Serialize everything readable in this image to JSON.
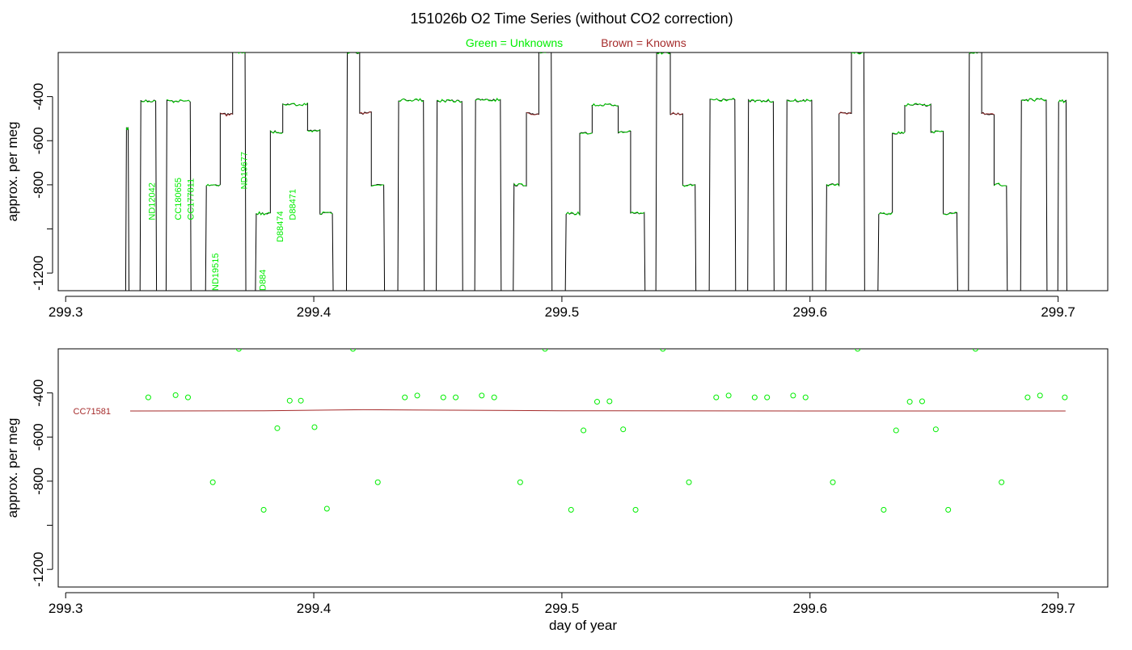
{
  "title": "151026b   O2 Time Series (without CO2 correction)",
  "legend": {
    "unknowns": "Green = Unknowns",
    "knowns": "Brown = Knowns"
  },
  "colors": {
    "unknown": "#00ee00",
    "known": "#a52a2a",
    "trace": "#000000"
  },
  "chart_data": [
    {
      "type": "line",
      "panel": "top",
      "ylabel": "approx. per meg",
      "xlabel": "",
      "xlim": [
        299.297,
        299.72
      ],
      "ylim": [
        -1280,
        -200
      ],
      "x_ticks": [
        299.3,
        299.4,
        299.5,
        299.6,
        299.7
      ],
      "y_ticks": [
        -400,
        -600,
        -800,
        -1200
      ],
      "segments": [
        {
          "x0": 299.3245,
          "x1": 299.3252,
          "y": -545,
          "kind": "unknown"
        },
        {
          "x0": 299.3303,
          "x1": 299.3363,
          "y": -420,
          "kind": "unknown"
        },
        {
          "x0": 299.3408,
          "x1": 299.3502,
          "y": -420,
          "kind": "unknown"
        },
        {
          "x0": 299.3567,
          "x1": 299.3623,
          "y": -800,
          "kind": "unknown"
        },
        {
          "x0": 299.3623,
          "x1": 299.3673,
          "y": -480,
          "kind": "known"
        },
        {
          "x0": 299.3673,
          "x1": 299.3723,
          "y": -200,
          "kind": "unknown"
        },
        {
          "x0": 299.3768,
          "x1": 299.3825,
          "y": -930,
          "kind": "unknown"
        },
        {
          "x0": 299.3825,
          "x1": 299.3875,
          "y": -560,
          "kind": "unknown"
        },
        {
          "x0": 299.3875,
          "x1": 299.3975,
          "y": -435,
          "kind": "unknown"
        },
        {
          "x0": 299.3975,
          "x1": 299.4025,
          "y": -555,
          "kind": "unknown"
        },
        {
          "x0": 299.4025,
          "x1": 299.4075,
          "y": -930,
          "kind": "unknown"
        },
        {
          "x0": 299.4135,
          "x1": 299.4185,
          "y": -200,
          "kind": "unknown"
        },
        {
          "x0": 299.4185,
          "x1": 299.4232,
          "y": -475,
          "kind": "known"
        },
        {
          "x0": 299.4232,
          "x1": 299.4282,
          "y": -800,
          "kind": "unknown"
        },
        {
          "x0": 299.4342,
          "x1": 299.4442,
          "y": -415,
          "kind": "unknown"
        },
        {
          "x0": 299.4497,
          "x1": 299.4597,
          "y": -420,
          "kind": "unknown"
        },
        {
          "x0": 299.4652,
          "x1": 299.4752,
          "y": -415,
          "kind": "unknown"
        },
        {
          "x0": 299.4807,
          "x1": 299.4857,
          "y": -800,
          "kind": "unknown"
        },
        {
          "x0": 299.4857,
          "x1": 299.4907,
          "y": -478,
          "kind": "known"
        },
        {
          "x0": 299.4907,
          "x1": 299.4957,
          "y": -200,
          "kind": "unknown"
        },
        {
          "x0": 299.5017,
          "x1": 299.5072,
          "y": -930,
          "kind": "unknown"
        },
        {
          "x0": 299.5072,
          "x1": 299.5122,
          "y": -565,
          "kind": "unknown"
        },
        {
          "x0": 299.5122,
          "x1": 299.5227,
          "y": -438,
          "kind": "unknown"
        },
        {
          "x0": 299.5227,
          "x1": 299.5277,
          "y": -560,
          "kind": "unknown"
        },
        {
          "x0": 299.5277,
          "x1": 299.5332,
          "y": -930,
          "kind": "unknown"
        },
        {
          "x0": 299.5382,
          "x1": 299.5437,
          "y": -200,
          "kind": "unknown"
        },
        {
          "x0": 299.5437,
          "x1": 299.5487,
          "y": -478,
          "kind": "known"
        },
        {
          "x0": 299.5487,
          "x1": 299.5537,
          "y": -800,
          "kind": "unknown"
        },
        {
          "x0": 299.5597,
          "x1": 299.5697,
          "y": -415,
          "kind": "unknown"
        },
        {
          "x0": 299.5752,
          "x1": 299.5852,
          "y": -420,
          "kind": "unknown"
        },
        {
          "x0": 299.5907,
          "x1": 299.6007,
          "y": -418,
          "kind": "unknown"
        },
        {
          "x0": 299.6067,
          "x1": 299.6117,
          "y": -800,
          "kind": "unknown"
        },
        {
          "x0": 299.6117,
          "x1": 299.6167,
          "y": -478,
          "kind": "known"
        },
        {
          "x0": 299.6167,
          "x1": 299.6217,
          "y": -200,
          "kind": "unknown"
        },
        {
          "x0": 299.6277,
          "x1": 299.6332,
          "y": -930,
          "kind": "unknown"
        },
        {
          "x0": 299.6332,
          "x1": 299.6382,
          "y": -565,
          "kind": "unknown"
        },
        {
          "x0": 299.6382,
          "x1": 299.6487,
          "y": -438,
          "kind": "unknown"
        },
        {
          "x0": 299.6487,
          "x1": 299.6537,
          "y": -560,
          "kind": "unknown"
        },
        {
          "x0": 299.6537,
          "x1": 299.6592,
          "y": -930,
          "kind": "unknown"
        },
        {
          "x0": 299.6642,
          "x1": 299.6692,
          "y": -200,
          "kind": "unknown"
        },
        {
          "x0": 299.6692,
          "x1": 299.6742,
          "y": -478,
          "kind": "known"
        },
        {
          "x0": 299.6742,
          "x1": 299.6792,
          "y": -800,
          "kind": "unknown"
        },
        {
          "x0": 299.6852,
          "x1": 299.6952,
          "y": -415,
          "kind": "unknown"
        },
        {
          "x0": 299.7002,
          "x1": 299.7032,
          "y": -420,
          "kind": "unknown"
        }
      ],
      "sample_labels": [
        {
          "x": 299.3347,
          "y": -960,
          "text": "ND12042"
        },
        {
          "x": 299.3453,
          "y": -960,
          "text": "CC180655"
        },
        {
          "x": 299.3503,
          "y": -960,
          "text": "CC177811"
        },
        {
          "x": 299.3603,
          "y": -1280,
          "text": "ND19515"
        },
        {
          "x": 299.3718,
          "y": -820,
          "text": "ND19677"
        },
        {
          "x": 299.3793,
          "y": -1280,
          "text": "D884"
        },
        {
          "x": 299.3863,
          "y": -1060,
          "text": "D88474"
        },
        {
          "x": 299.3913,
          "y": -960,
          "text": "D88471"
        }
      ]
    },
    {
      "type": "scatter",
      "panel": "bottom",
      "ylabel": "approx. per meg",
      "xlabel": "day of year",
      "xlim": [
        299.297,
        299.72
      ],
      "ylim": [
        -1280,
        -200
      ],
      "x_ticks": [
        299.3,
        299.4,
        299.5,
        299.6,
        299.7
      ],
      "y_ticks": [
        -400,
        -600,
        -800,
        -1200
      ],
      "points": [
        {
          "x": 299.3333,
          "y": -420
        },
        {
          "x": 299.3443,
          "y": -410
        },
        {
          "x": 299.3493,
          "y": -420
        },
        {
          "x": 299.3593,
          "y": -805
        },
        {
          "x": 299.3698,
          "y": -200
        },
        {
          "x": 299.3798,
          "y": -930
        },
        {
          "x": 299.3853,
          "y": -560
        },
        {
          "x": 299.3903,
          "y": -435
        },
        {
          "x": 299.3948,
          "y": -435
        },
        {
          "x": 299.4003,
          "y": -555
        },
        {
          "x": 299.4053,
          "y": -925
        },
        {
          "x": 299.4158,
          "y": -200
        },
        {
          "x": 299.4258,
          "y": -805
        },
        {
          "x": 299.4367,
          "y": -420
        },
        {
          "x": 299.4417,
          "y": -412
        },
        {
          "x": 299.4522,
          "y": -420
        },
        {
          "x": 299.4572,
          "y": -420
        },
        {
          "x": 299.4677,
          "y": -412
        },
        {
          "x": 299.4727,
          "y": -420
        },
        {
          "x": 299.4832,
          "y": -805
        },
        {
          "x": 299.4932,
          "y": -200
        },
        {
          "x": 299.5037,
          "y": -930
        },
        {
          "x": 299.5087,
          "y": -570
        },
        {
          "x": 299.5142,
          "y": -440
        },
        {
          "x": 299.5192,
          "y": -438
        },
        {
          "x": 299.5247,
          "y": -565
        },
        {
          "x": 299.5297,
          "y": -930
        },
        {
          "x": 299.5407,
          "y": -200
        },
        {
          "x": 299.5512,
          "y": -805
        },
        {
          "x": 299.5622,
          "y": -420
        },
        {
          "x": 299.5672,
          "y": -412
        },
        {
          "x": 299.5777,
          "y": -420
        },
        {
          "x": 299.5827,
          "y": -420
        },
        {
          "x": 299.5932,
          "y": -412
        },
        {
          "x": 299.5982,
          "y": -420
        },
        {
          "x": 299.6092,
          "y": -805
        },
        {
          "x": 299.6192,
          "y": -200
        },
        {
          "x": 299.6297,
          "y": -930
        },
        {
          "x": 299.6347,
          "y": -570
        },
        {
          "x": 299.6402,
          "y": -440
        },
        {
          "x": 299.6452,
          "y": -438
        },
        {
          "x": 299.6507,
          "y": -565
        },
        {
          "x": 299.6557,
          "y": -930
        },
        {
          "x": 299.6667,
          "y": -200
        },
        {
          "x": 299.6772,
          "y": -805
        },
        {
          "x": 299.6877,
          "y": -420
        },
        {
          "x": 299.6927,
          "y": -412
        },
        {
          "x": 299.7027,
          "y": -420
        }
      ],
      "reference_line": {
        "label": "CC71581",
        "x": [
          299.326,
          299.38,
          299.42,
          299.5,
          299.6,
          299.703
        ],
        "y": [
          -482,
          -481,
          -476,
          -481,
          -482,
          -482
        ]
      }
    }
  ]
}
